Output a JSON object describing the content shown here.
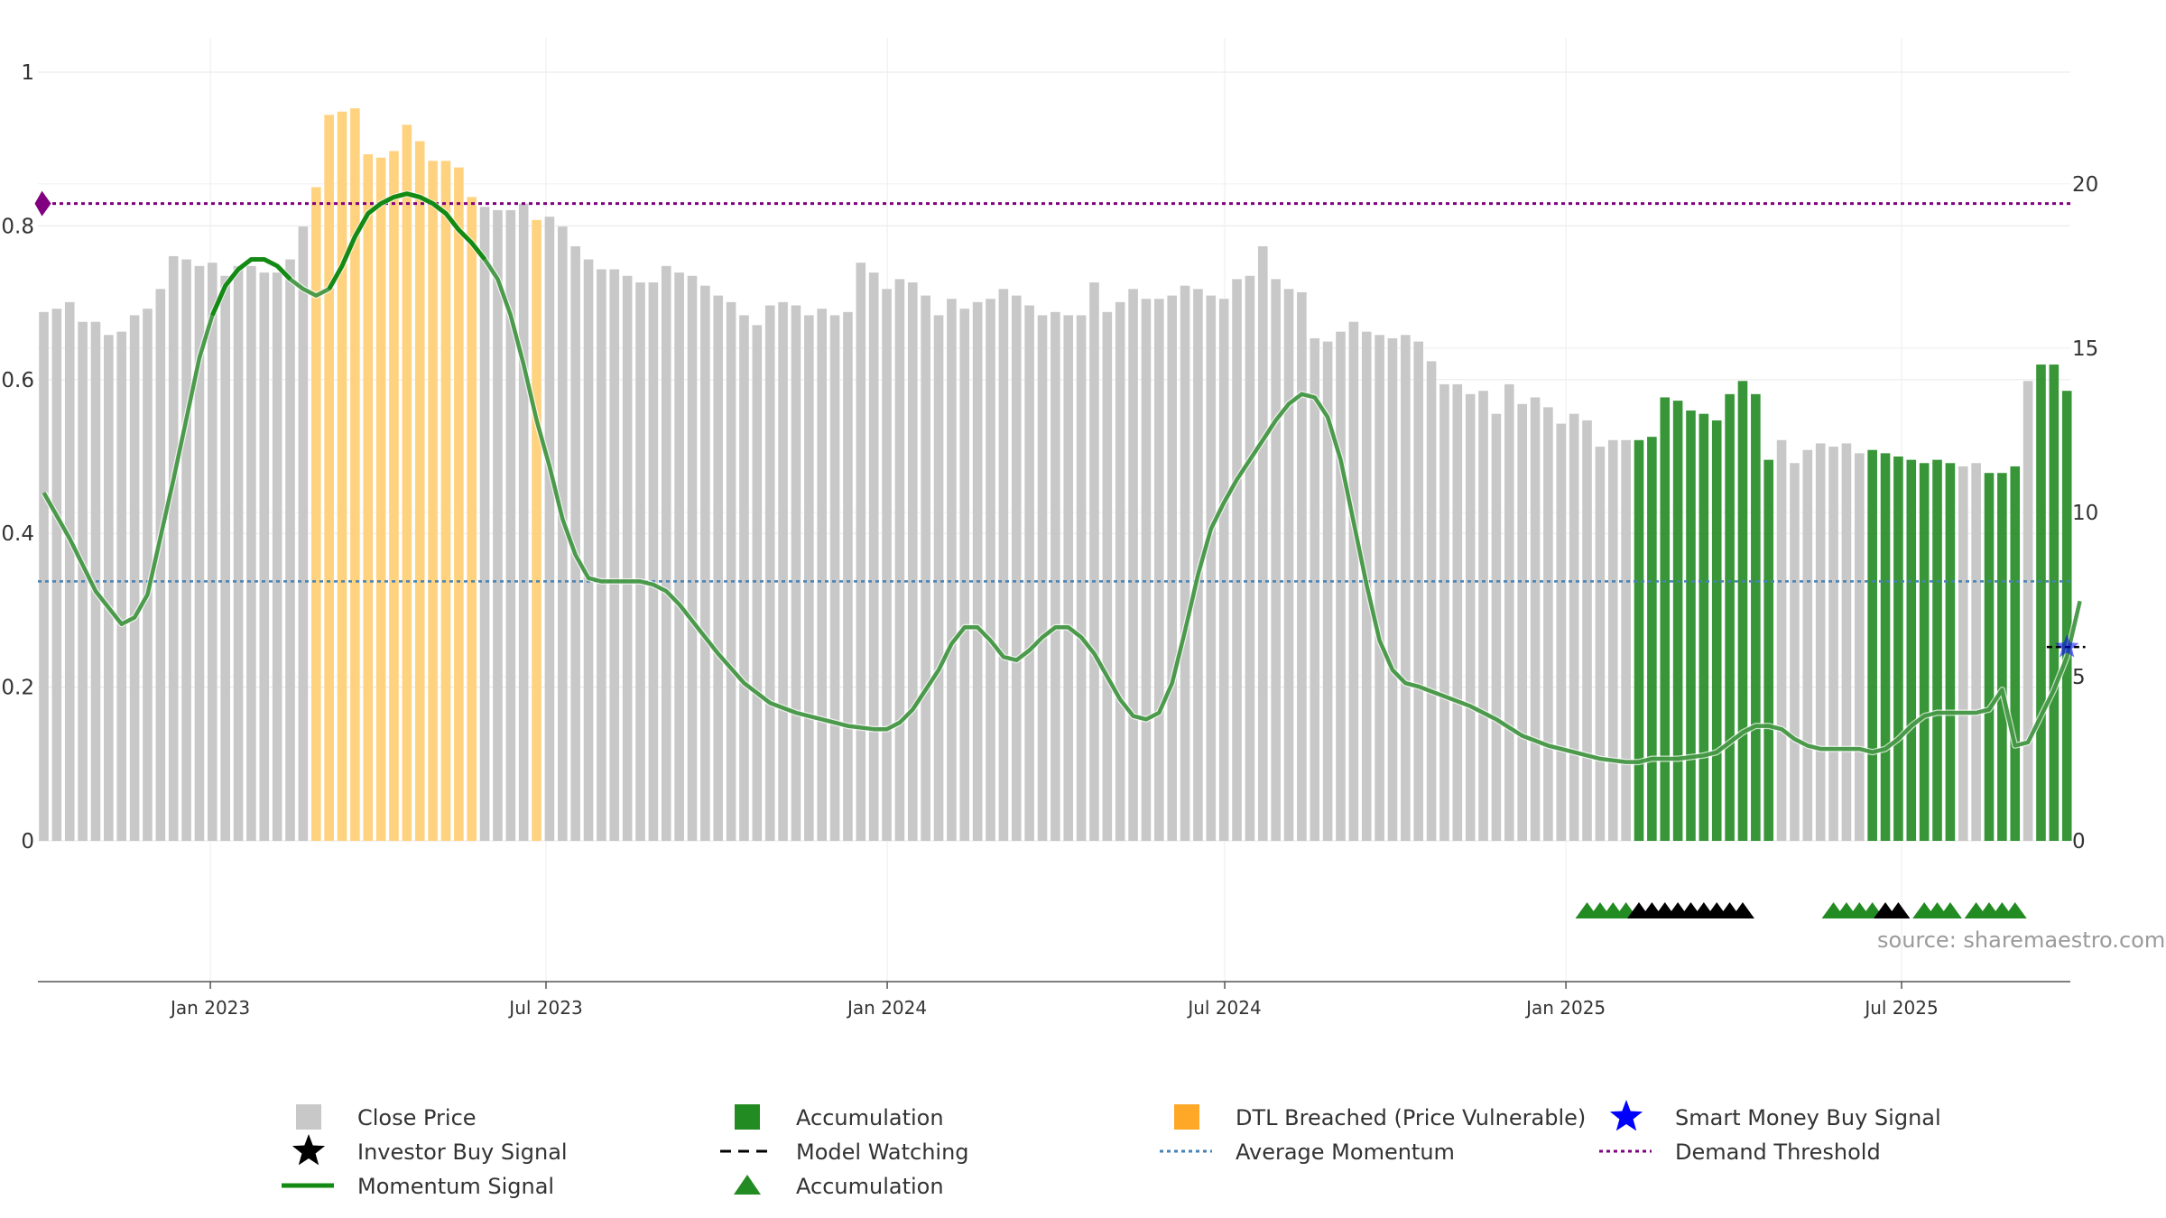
{
  "chart_data": {
    "type": "bar",
    "title": "",
    "xlabel": "",
    "ylabel": "",
    "source": "source: sharemaestro.com",
    "y_left": {
      "ylim": [
        0,
        1
      ],
      "ticks": [
        "0",
        "0.2",
        "0.4",
        "0.6",
        "0.8",
        "1"
      ]
    },
    "y_right": {
      "ylim": [
        0,
        23.4
      ],
      "ticks": [
        "0",
        "5",
        "10",
        "15",
        "20"
      ]
    },
    "x_ticks": [
      {
        "label": "Jan 2023",
        "date": "2023-01-01"
      },
      {
        "label": "Jul 2023",
        "date": "2023-07-01"
      },
      {
        "label": "Jan 2024",
        "date": "2024-01-01"
      },
      {
        "label": "Jul 2024",
        "date": "2024-07-01"
      },
      {
        "label": "Jan 2025",
        "date": "2025-01-01"
      },
      {
        "label": "Jul 2025",
        "date": "2025-07-01"
      }
    ],
    "x_range": [
      "2022-09-30",
      "2025-09-30"
    ],
    "grid": true,
    "legend_position": "bottom",
    "colors": {
      "close": "#c8c8c8",
      "accumulation": "#228b22",
      "dtl": "#ffd27f",
      "momentum": "#2e8b2e",
      "momentum_dark": "#138a13",
      "average": "#4682b4",
      "demand": "#800080",
      "smart": "#0000ff",
      "investor": "#000000"
    },
    "demand_threshold": 19.4,
    "average_momentum": 7.9,
    "weekly_closes": [
      16.1,
      16.2,
      16.4,
      15.8,
      15.8,
      15.4,
      15.5,
      16.0,
      16.2,
      16.8,
      17.8,
      17.7,
      17.5,
      17.6,
      17.2,
      17.5,
      17.5,
      17.3,
      17.3,
      17.7,
      18.7,
      19.9,
      22.1,
      22.2,
      22.3,
      20.9,
      20.8,
      21.0,
      21.8,
      21.3,
      20.7,
      20.7,
      20.5,
      19.6,
      19.3,
      19.2,
      19.2,
      19.4,
      18.9,
      19.0,
      18.7,
      18.1,
      17.7,
      17.4,
      17.4,
      17.2,
      17.0,
      17.0,
      17.5,
      17.3,
      17.2,
      16.9,
      16.6,
      16.4,
      16.0,
      15.7,
      16.3,
      16.4,
      16.3,
      16.0,
      16.2,
      16.0,
      16.1,
      17.6,
      17.3,
      16.8,
      17.1,
      17.0,
      16.6,
      16.0,
      16.5,
      16.2,
      16.4,
      16.5,
      16.8,
      16.6,
      16.3,
      16.0,
      16.1,
      16.0,
      16.0,
      17.0,
      16.1,
      16.4,
      16.8,
      16.5,
      16.5,
      16.6,
      16.9,
      16.8,
      16.6,
      16.5,
      17.1,
      17.2,
      18.1,
      17.1,
      16.8,
      16.7,
      15.3,
      15.2,
      15.5,
      15.8,
      15.5,
      15.4,
      15.3,
      15.4,
      15.2,
      14.6,
      13.9,
      13.9,
      13.6,
      13.7,
      13.0,
      13.9,
      13.3,
      13.5,
      13.2,
      12.7,
      13.0,
      12.8,
      12.0,
      12.2,
      12.2,
      12.2,
      12.3,
      13.5,
      13.4,
      13.1,
      13.0,
      12.8,
      13.6,
      14.0,
      13.6,
      11.6,
      12.2,
      11.5,
      11.9,
      12.1,
      12.0,
      12.1,
      11.8,
      11.9,
      11.8,
      11.7,
      11.6,
      11.5,
      11.6,
      11.5,
      11.4,
      11.5,
      11.2,
      11.2,
      11.4,
      14.0,
      14.5,
      14.5,
      13.7
    ],
    "bar_classes": [
      "c",
      "c",
      "c",
      "c",
      "c",
      "c",
      "c",
      "c",
      "c",
      "c",
      "c",
      "c",
      "c",
      "c",
      "c",
      "c",
      "c",
      "c",
      "c",
      "c",
      "c",
      "d",
      "d",
      "d",
      "d",
      "d",
      "d",
      "d",
      "d",
      "d",
      "d",
      "d",
      "d",
      "d",
      "c",
      "c",
      "c",
      "c",
      "d",
      "c",
      "c",
      "c",
      "c",
      "c",
      "c",
      "c",
      "c",
      "c",
      "c",
      "c",
      "c",
      "c",
      "c",
      "c",
      "c",
      "c",
      "c",
      "c",
      "c",
      "c",
      "c",
      "c",
      "c",
      "c",
      "c",
      "c",
      "c",
      "c",
      "c",
      "c",
      "c",
      "c",
      "c",
      "c",
      "c",
      "c",
      "c",
      "c",
      "c",
      "c",
      "c",
      "c",
      "c",
      "c",
      "c",
      "c",
      "c",
      "c",
      "c",
      "c",
      "c",
      "c",
      "c",
      "c",
      "c",
      "c",
      "c",
      "c",
      "c",
      "c",
      "c",
      "c",
      "c",
      "c",
      "c",
      "c",
      "c",
      "c",
      "c",
      "c",
      "c",
      "c",
      "c",
      "c",
      "c",
      "c",
      "c",
      "c",
      "c",
      "c",
      "c",
      "c",
      "c",
      "a",
      "a",
      "a",
      "a",
      "a",
      "a",
      "a",
      "a",
      "a",
      "a",
      "a",
      "c",
      "c",
      "c",
      "c",
      "c",
      "c",
      "c",
      "a",
      "a",
      "a",
      "a",
      "a",
      "a",
      "a",
      "c",
      "c",
      "a",
      "a",
      "a",
      "c",
      "a",
      "a",
      "a",
      "c"
    ],
    "momentum": [
      [
        0,
        10.6
      ],
      [
        2,
        9.2
      ],
      [
        4,
        7.6
      ],
      [
        6,
        6.6
      ],
      [
        7,
        6.8
      ],
      [
        8,
        7.5
      ],
      [
        10,
        11.0
      ],
      [
        12,
        14.7
      ],
      [
        13,
        16.0
      ],
      [
        14,
        16.9
      ],
      [
        15,
        17.4
      ],
      [
        16,
        17.7
      ],
      [
        17,
        17.7
      ],
      [
        18,
        17.5
      ],
      [
        19,
        17.1
      ],
      [
        20,
        16.8
      ],
      [
        21,
        16.6
      ],
      [
        22,
        16.8
      ],
      [
        23,
        17.5
      ],
      [
        24,
        18.4
      ],
      [
        25,
        19.1
      ],
      [
        26,
        19.4
      ],
      [
        27,
        19.6
      ],
      [
        28,
        19.7
      ],
      [
        29,
        19.6
      ],
      [
        30,
        19.4
      ],
      [
        31,
        19.1
      ],
      [
        32,
        18.6
      ],
      [
        33,
        18.2
      ],
      [
        34,
        17.7
      ],
      [
        35,
        17.1
      ],
      [
        36,
        16.0
      ],
      [
        37,
        14.5
      ],
      [
        38,
        12.8
      ],
      [
        39,
        11.4
      ],
      [
        40,
        9.8
      ],
      [
        41,
        8.7
      ],
      [
        42,
        8.0
      ],
      [
        43,
        7.9
      ],
      [
        44,
        7.9
      ],
      [
        45,
        7.9
      ],
      [
        46,
        7.9
      ],
      [
        47,
        7.8
      ],
      [
        48,
        7.6
      ],
      [
        49,
        7.2
      ],
      [
        50,
        6.7
      ],
      [
        52,
        5.7
      ],
      [
        54,
        4.8
      ],
      [
        56,
        4.2
      ],
      [
        58,
        3.9
      ],
      [
        60,
        3.7
      ],
      [
        62,
        3.5
      ],
      [
        64,
        3.4
      ],
      [
        65,
        3.4
      ],
      [
        66,
        3.6
      ],
      [
        67,
        4.0
      ],
      [
        68,
        4.6
      ],
      [
        69,
        5.2
      ],
      [
        70,
        6.0
      ],
      [
        71,
        6.5
      ],
      [
        72,
        6.5
      ],
      [
        73,
        6.1
      ],
      [
        74,
        5.6
      ],
      [
        75,
        5.5
      ],
      [
        76,
        5.8
      ],
      [
        77,
        6.2
      ],
      [
        78,
        6.5
      ],
      [
        79,
        6.5
      ],
      [
        80,
        6.2
      ],
      [
        81,
        5.7
      ],
      [
        82,
        5.0
      ],
      [
        83,
        4.3
      ],
      [
        84,
        3.8
      ],
      [
        85,
        3.7
      ],
      [
        86,
        3.9
      ],
      [
        87,
        4.8
      ],
      [
        88,
        6.4
      ],
      [
        89,
        8.1
      ],
      [
        90,
        9.5
      ],
      [
        91,
        10.3
      ],
      [
        92,
        11.0
      ],
      [
        93,
        11.6
      ],
      [
        94,
        12.2
      ],
      [
        95,
        12.8
      ],
      [
        96,
        13.3
      ],
      [
        97,
        13.6
      ],
      [
        98,
        13.5
      ],
      [
        99,
        12.9
      ],
      [
        100,
        11.6
      ],
      [
        101,
        9.7
      ],
      [
        102,
        7.8
      ],
      [
        103,
        6.1
      ],
      [
        104,
        5.2
      ],
      [
        105,
        4.8
      ],
      [
        106,
        4.7
      ],
      [
        108,
        4.4
      ],
      [
        110,
        4.1
      ],
      [
        112,
        3.7
      ],
      [
        114,
        3.2
      ],
      [
        116,
        2.9
      ],
      [
        118,
        2.7
      ],
      [
        120,
        2.5
      ],
      [
        122,
        2.4
      ],
      [
        123,
        2.4
      ],
      [
        124,
        2.5
      ],
      [
        126,
        2.5
      ],
      [
        128,
        2.6
      ],
      [
        129,
        2.7
      ],
      [
        130,
        3.0
      ],
      [
        131,
        3.3
      ],
      [
        132,
        3.5
      ],
      [
        133,
        3.5
      ],
      [
        134,
        3.4
      ],
      [
        135,
        3.1
      ],
      [
        136,
        2.9
      ],
      [
        137,
        2.8
      ],
      [
        138,
        2.8
      ],
      [
        140,
        2.8
      ],
      [
        141,
        2.7
      ],
      [
        142,
        2.8
      ],
      [
        143,
        3.1
      ],
      [
        144,
        3.5
      ],
      [
        145,
        3.8
      ],
      [
        146,
        3.9
      ],
      [
        147,
        3.9
      ],
      [
        148,
        3.9
      ],
      [
        149,
        3.9
      ],
      [
        150,
        4.0
      ],
      [
        151,
        4.6
      ],
      [
        152,
        2.9
      ],
      [
        153,
        3.0
      ],
      [
        154,
        3.8
      ],
      [
        155,
        4.6
      ],
      [
        156,
        5.6
      ],
      [
        157,
        7.3
      ]
    ],
    "momentum_highlight_ranges": [
      [
        13,
        19
      ],
      [
        22,
        34
      ]
    ],
    "accumulation_markers": [
      119,
      120,
      121,
      122,
      138,
      139,
      140,
      141,
      145,
      146,
      147,
      149,
      150,
      151,
      152
    ],
    "investor_markers": [
      123,
      124,
      125,
      126,
      127,
      128,
      129,
      130,
      131,
      142,
      143
    ],
    "model_watching": {
      "bar_start": 155,
      "bar_end": 157,
      "value": 5.9
    },
    "smart_money_signal": {
      "bar": 156,
      "value": 5.9
    },
    "demand_threshold_marker_bar": 0
  },
  "legend": [
    {
      "key": "close",
      "label": "Close Price",
      "icon": "grey-square"
    },
    {
      "key": "accumulation_bar",
      "label": "Accumulation",
      "icon": "green-square"
    },
    {
      "key": "dtl",
      "label": "DTL Breached (Price Vulnerable)",
      "icon": "orange-square"
    },
    {
      "key": "smart",
      "label": "Smart Money Buy Signal",
      "icon": "blue-star"
    },
    {
      "key": "investor",
      "label": "Investor Buy Signal",
      "icon": "black-star"
    },
    {
      "key": "watching",
      "label": "Model Watching",
      "icon": "black-dashed-line"
    },
    {
      "key": "average",
      "label": "Average Momentum",
      "icon": "blue-dotted-line"
    },
    {
      "key": "demand",
      "label": "Demand Threshold",
      "icon": "purple-dotted-line"
    },
    {
      "key": "momentum",
      "label": "Momentum Signal",
      "icon": "green-line"
    },
    {
      "key": "accumulation_marker",
      "label": "Accumulation",
      "icon": "green-triangle"
    }
  ]
}
